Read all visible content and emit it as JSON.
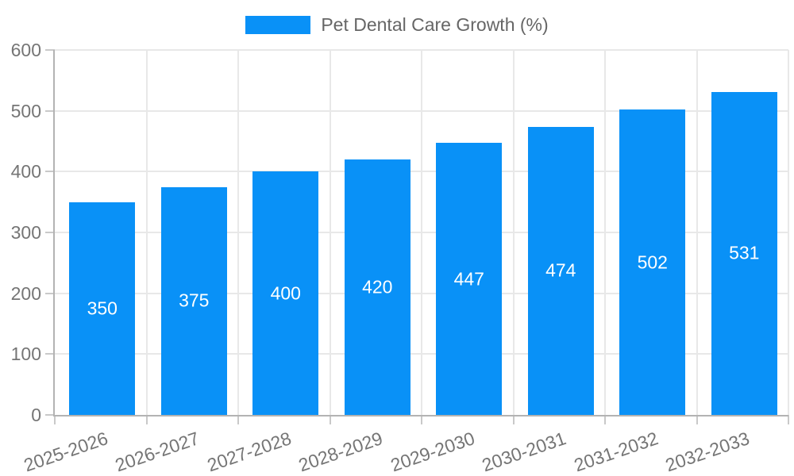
{
  "legend": {
    "label": "Pet Dental Care Growth (%)"
  },
  "colors": {
    "bar": "#0991f7",
    "grid": "#e8e8e8",
    "axis": "#b3b3b3",
    "tick": "#c9c9c9",
    "tick_label": "#757575",
    "legend_text": "#666666",
    "value_label": "#ffffff"
  },
  "chart_data": {
    "type": "bar",
    "title": "Pet Dental Care Growth (%)",
    "categories": [
      "2025-2026",
      "2026-2027",
      "2027-2028",
      "2028-2029",
      "2029-2030",
      "2030-2031",
      "2031-2032",
      "2032-2033"
    ],
    "values": [
      350,
      375,
      400,
      420,
      447,
      474,
      502,
      531
    ],
    "xlabel": "",
    "ylabel": "",
    "ylim": [
      0,
      600
    ],
    "yticks": [
      0,
      100,
      200,
      300,
      400,
      500,
      600
    ],
    "grid": true,
    "legend_position": "top",
    "value_label_position": "inside-center",
    "x_tick_rotation_deg": -19
  }
}
